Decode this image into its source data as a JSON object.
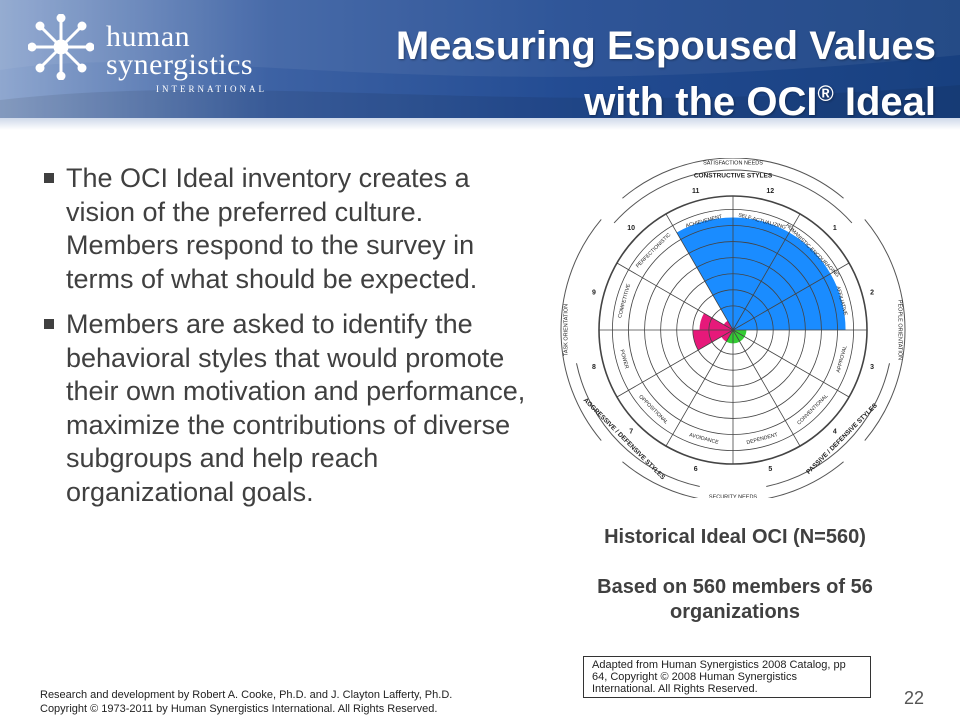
{
  "header": {
    "logo_line1": "human",
    "logo_line2": "synergistics",
    "logo_line3": "INTERNATIONAL",
    "title_line1": "Measuring Espoused Values",
    "title_line2a": "with the OCI",
    "title_reg": "®",
    "title_line2b": " Ideal"
  },
  "bullets": [
    "The OCI Ideal inventory creates a vision of the preferred culture. Members respond to the survey in terms of what should be expected.",
    "Members are asked to identify the behavioral styles that would promote their own motivation and performance, maximize the contributions of diverse subgroups and help reach organizational goals."
  ],
  "chart": {
    "top_arc_label": "SATISFACTION NEEDS",
    "bottom_arc_label": "SECURITY NEEDS",
    "left_arc_label": "TASK ORIENTATION",
    "right_arc_label": "PEOPLE ORIENTATION",
    "constructive_label": "CONSTRUCTIVE STYLES",
    "aggressive_label": "AGGRESSIVE / DEFENSIVE STYLES",
    "passive_label": "PASSIVE / DEFENSIVE STYLES",
    "style_names": [
      "SELF-ACTUALIZING",
      "HUMANISTIC-ENCOURAGING",
      "AFFILIATIVE",
      "APPROVAL",
      "CONVENTIONAL",
      "DEPENDENT",
      "AVOIDANCE",
      "OPPOSITIONAL",
      "POWER",
      "COMPETITIVE",
      "PERFECTIONISTIC",
      "ACHIEVEMENT"
    ],
    "numbers": [
      "12",
      "1",
      "2",
      "3",
      "4",
      "5",
      "6",
      "7",
      "8",
      "9",
      "10",
      "11"
    ],
    "colors": {
      "constructive": "#1a8cff",
      "passive": "#33cc33",
      "aggressive": "#e6197a"
    }
  },
  "chart_data": {
    "type": "polar",
    "categories": [
      "SELF-ACTUALIZING",
      "HUMANISTIC-ENCOURAGING",
      "AFFILIATIVE",
      "APPROVAL",
      "CONVENTIONAL",
      "DEPENDENT",
      "AVOIDANCE",
      "OPPOSITIONAL",
      "POWER",
      "COMPETITIVE",
      "PERFECTIONISTIC",
      "ACHIEVEMENT"
    ],
    "values": [
      0.84,
      0.84,
      0.84,
      0.1,
      0.1,
      0.1,
      0.1,
      0.1,
      0.3,
      0.25,
      0.08,
      0.84
    ],
    "value_scale": "fraction of outer circle radius (estimated)",
    "series_groups": {
      "constructive": [
        0,
        1,
        2,
        11
      ],
      "passive_defensive": [
        3,
        4,
        5,
        6
      ],
      "aggressive_defensive": [
        7,
        8,
        9,
        10
      ]
    }
  },
  "captions": {
    "line1": "Historical Ideal OCI (N=560)",
    "line2": "Based on 560 members of 56 organizations"
  },
  "source_note": "Adapted from Human Synergistics 2008 Catalog, pp 64, Copyright © 2008 Human Synergistics International. All Rights Reserved.",
  "footer": {
    "line1": "Research and development by Robert A. Cooke, Ph.D. and J. Clayton Lafferty, Ph.D.",
    "line2": "Copyright © 1973-2011 by Human Synergistics International. All Rights Reserved."
  },
  "page_number": "22"
}
